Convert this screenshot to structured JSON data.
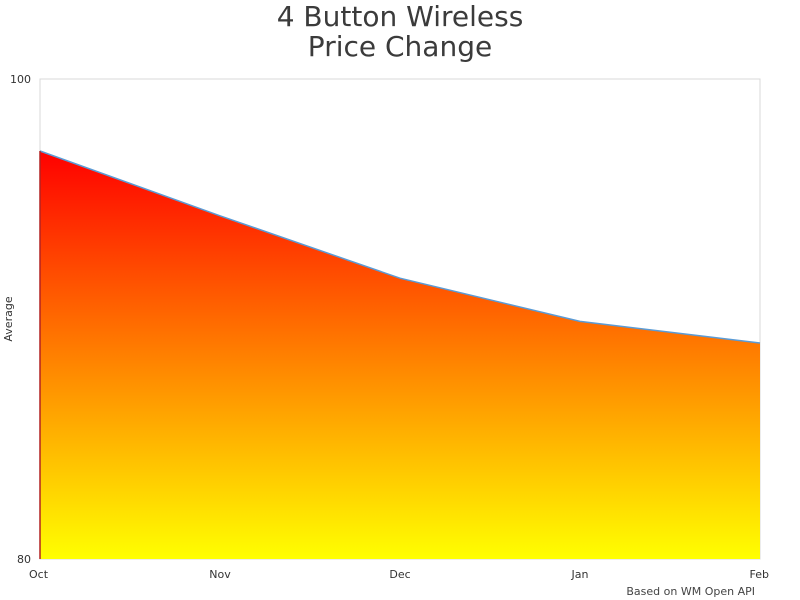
{
  "chart_title": {
    "line1": "4 Button Wireless",
    "line2": "Price Change"
  },
  "credit": "Based on WM Open API",
  "chart_data": {
    "type": "area",
    "title": "4 Button Wireless Price Change",
    "xlabel": "",
    "ylabel": "Average",
    "categories": [
      "Oct",
      "Nov",
      "Dec",
      "Jan",
      "Feb"
    ],
    "series": [
      {
        "values": [
          97.0,
          94.3,
          91.7,
          89.9,
          89.0
        ]
      }
    ],
    "ylim": [
      80,
      100
    ],
    "y_tick_labels": [
      "100",
      "80"
    ],
    "grid": false,
    "legend": "none",
    "colors": {
      "fill_top": "#ff0000",
      "fill_bottom": "#ffff00",
      "line": "#5b9bd5",
      "plot_border": "#d8d8d8"
    }
  }
}
